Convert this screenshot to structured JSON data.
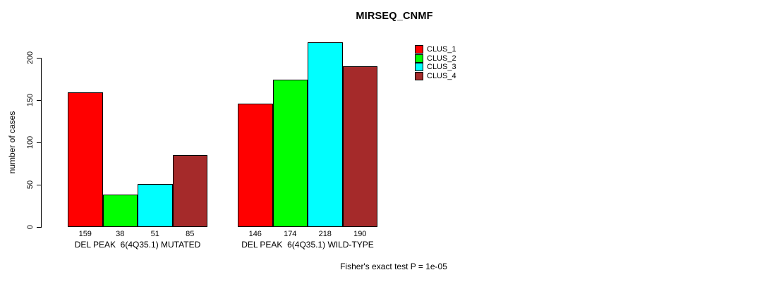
{
  "chart_data": {
    "type": "bar",
    "title": "MIRSEQ_CNMF",
    "ylabel": "number of cases",
    "xlabel": "",
    "y_ticks": [
      0,
      50,
      100,
      150,
      200
    ],
    "ylim": [
      0,
      220
    ],
    "grid": false,
    "legend_position": "top-right",
    "groups": [
      {
        "label": "DEL PEAK  6(4Q35.1) MUTATED",
        "values": [
          159,
          38,
          51,
          85
        ]
      },
      {
        "label": "DEL PEAK  6(4Q35.1) WILD-TYPE",
        "values": [
          146,
          174,
          218,
          190
        ]
      }
    ],
    "series": [
      {
        "name": "CLUS_1",
        "color": "#FF0000"
      },
      {
        "name": "CLUS_2",
        "color": "#00FF00"
      },
      {
        "name": "CLUS_3",
        "color": "#00FFFF"
      },
      {
        "name": "CLUS_4",
        "color": "#A52A2A"
      }
    ],
    "bar_value_labels": [
      159,
      38,
      51,
      85,
      146,
      174,
      218,
      190
    ],
    "caption": "Fisher's exact test P = 1e-05",
    "colors": {
      "background": "#FFFFFF",
      "axis": "#000000",
      "bar_border": "#000000",
      "text": "#000000"
    }
  }
}
